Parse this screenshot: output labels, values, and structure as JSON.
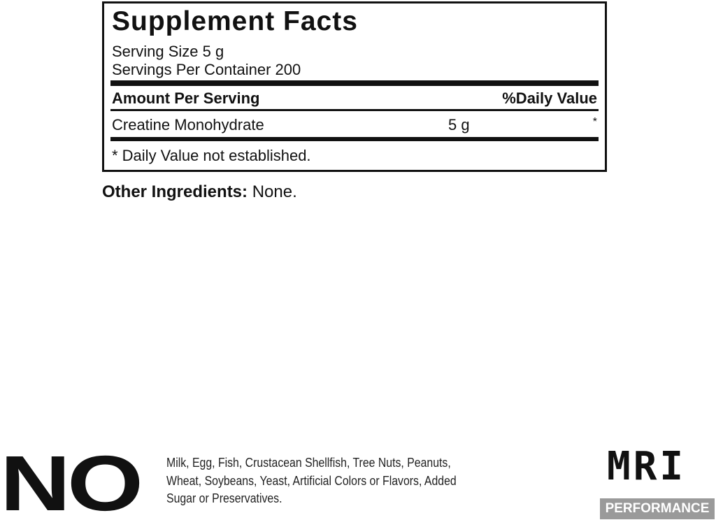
{
  "facts": {
    "title": "Supplement Facts",
    "serving_size": "Serving Size 5 g",
    "servings_per_container": "Servings Per Container 200",
    "amount_header": "Amount Per Serving",
    "dv_header": "%Daily Value",
    "rows": [
      {
        "name": "Creatine Monohydrate",
        "amount": "5 g",
        "dv": "*"
      }
    ],
    "footnote": "* Daily Value not established."
  },
  "other_ingredients": {
    "label": "Other Ingredients:",
    "value": " None."
  },
  "allergen": {
    "no": "NO",
    "text": "Milk, Egg, Fish, Crustacean Shellfish, Tree Nuts, Peanuts, Wheat, Soybeans, Yeast, Artificial Colors or Flavors, Added Sugar or Preservatives."
  },
  "brand": {
    "name": "MRI",
    "sub": "PERFORMANCE",
    "sub_bg": "#9a9a9a"
  }
}
